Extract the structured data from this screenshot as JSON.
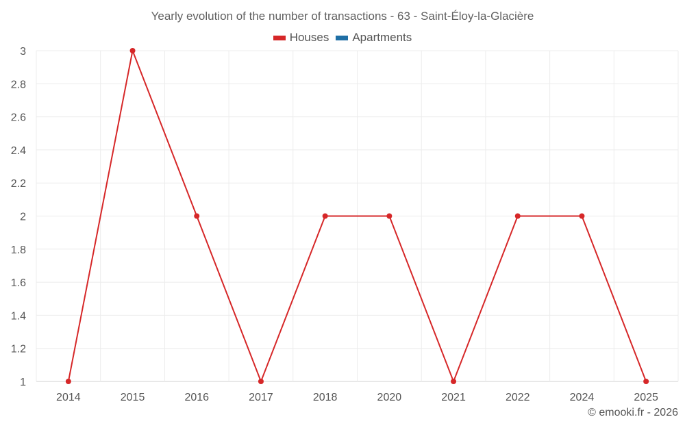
{
  "chart_data": {
    "type": "line",
    "title": "Yearly evolution of the number of transactions - 63 - Saint-Éloy-la-Glacière",
    "xlabel": "",
    "ylabel": "",
    "categories": [
      "2014",
      "2015",
      "2016",
      "2017",
      "2018",
      "2020",
      "2021",
      "2022",
      "2024",
      "2025"
    ],
    "series": [
      {
        "name": "Houses",
        "color": "#d62728",
        "values": [
          1,
          3,
          2,
          1,
          2,
          2,
          1,
          2,
          2,
          1
        ]
      },
      {
        "name": "Apartments",
        "color": "#1f6fa5",
        "values": []
      }
    ],
    "ylim": [
      1,
      3
    ],
    "yticks": [
      "1",
      "1.2",
      "1.4",
      "1.6",
      "1.8",
      "2",
      "2.2",
      "2.4",
      "2.6",
      "2.8",
      "3"
    ],
    "grid": true,
    "legend_position": "top"
  },
  "legend": [
    {
      "label": "Houses",
      "color": "#d62728"
    },
    {
      "label": "Apartments",
      "color": "#1f6fa5"
    }
  ],
  "credits": "© emooki.fr - 2026"
}
